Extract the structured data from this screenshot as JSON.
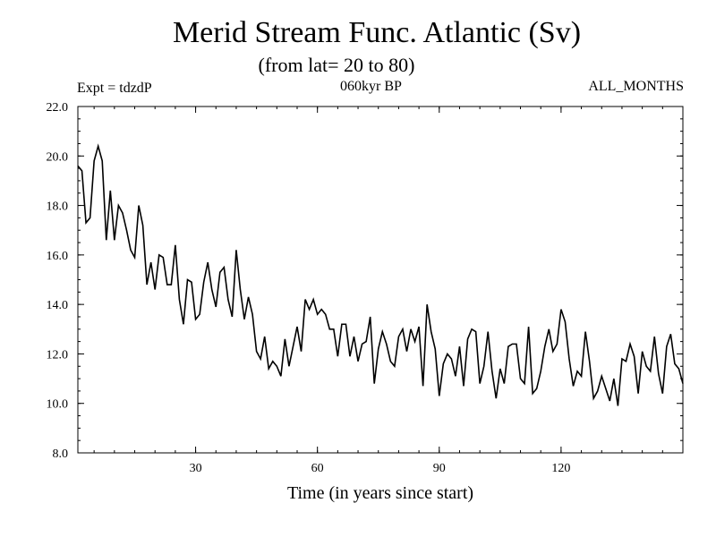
{
  "chart_data": {
    "type": "line",
    "title": "Merid Stream Func. Atlantic (Sv)",
    "subtitle": "(from lat= 20 to 80)",
    "expt_label": "Expt = tdzdP",
    "period_label": "060kyr BP",
    "months_label": "ALL_MONTHS",
    "xlabel": "Time (in years since start)",
    "ylabel": "",
    "xlim": [
      1,
      150
    ],
    "ylim": [
      8.0,
      22.0
    ],
    "x_ticks": [
      30,
      60,
      90,
      120
    ],
    "x_tick_labels": [
      "30",
      "60",
      "90",
      "120"
    ],
    "y_ticks": [
      8.0,
      10.0,
      12.0,
      14.0,
      16.0,
      18.0,
      20.0,
      22.0
    ],
    "y_tick_labels": [
      "8.0",
      "10.0",
      "12.0",
      "14.0",
      "16.0",
      "18.0",
      "20.0",
      "22.0"
    ],
    "series": [
      {
        "name": "Merid Stream Func. Atlantic",
        "color": "#000000",
        "x_start": 1,
        "x_step": 1,
        "values": [
          19.6,
          19.4,
          17.3,
          17.5,
          19.8,
          20.4,
          19.8,
          16.6,
          18.6,
          16.6,
          18.0,
          17.7,
          17.0,
          16.2,
          15.9,
          18.0,
          17.2,
          14.8,
          15.7,
          14.6,
          16.0,
          15.9,
          14.8,
          14.8,
          16.4,
          14.2,
          13.2,
          15.0,
          14.9,
          13.4,
          13.6,
          14.9,
          15.7,
          14.6,
          13.9,
          15.3,
          15.5,
          14.2,
          13.5,
          16.2,
          14.6,
          13.4,
          14.3,
          13.6,
          12.1,
          11.8,
          12.7,
          11.4,
          11.7,
          11.5,
          11.1,
          12.6,
          11.5,
          12.3,
          13.1,
          12.1,
          14.2,
          13.8,
          14.2,
          13.6,
          13.8,
          13.6,
          13.0,
          13.0,
          11.9,
          13.2,
          13.2,
          11.9,
          12.7,
          11.7,
          12.4,
          12.5,
          13.5,
          10.8,
          12.2,
          12.9,
          12.4,
          11.7,
          11.5,
          12.7,
          13.0,
          12.1,
          13.0,
          12.5,
          13.1,
          10.7,
          14.0,
          12.9,
          12.2,
          10.3,
          11.6,
          12.0,
          11.8,
          11.1,
          12.3,
          10.7,
          12.6,
          13.0,
          12.9,
          10.8,
          11.5,
          12.9,
          11.3,
          10.2,
          11.4,
          10.8,
          12.3,
          12.4,
          12.4,
          11.0,
          10.8,
          13.1,
          10.4,
          10.6,
          11.3,
          12.3,
          13.0,
          12.1,
          12.4,
          13.8,
          13.3,
          11.8,
          10.7,
          11.3,
          11.1,
          12.9,
          11.7,
          10.2,
          10.5,
          11.1,
          10.6,
          10.1,
          11.0,
          9.9,
          11.8,
          11.7,
          12.4,
          11.9,
          10.4,
          12.1,
          11.5,
          11.3,
          12.7,
          11.2,
          10.4,
          12.3,
          12.8,
          11.6,
          11.4,
          10.8
        ]
      }
    ]
  }
}
